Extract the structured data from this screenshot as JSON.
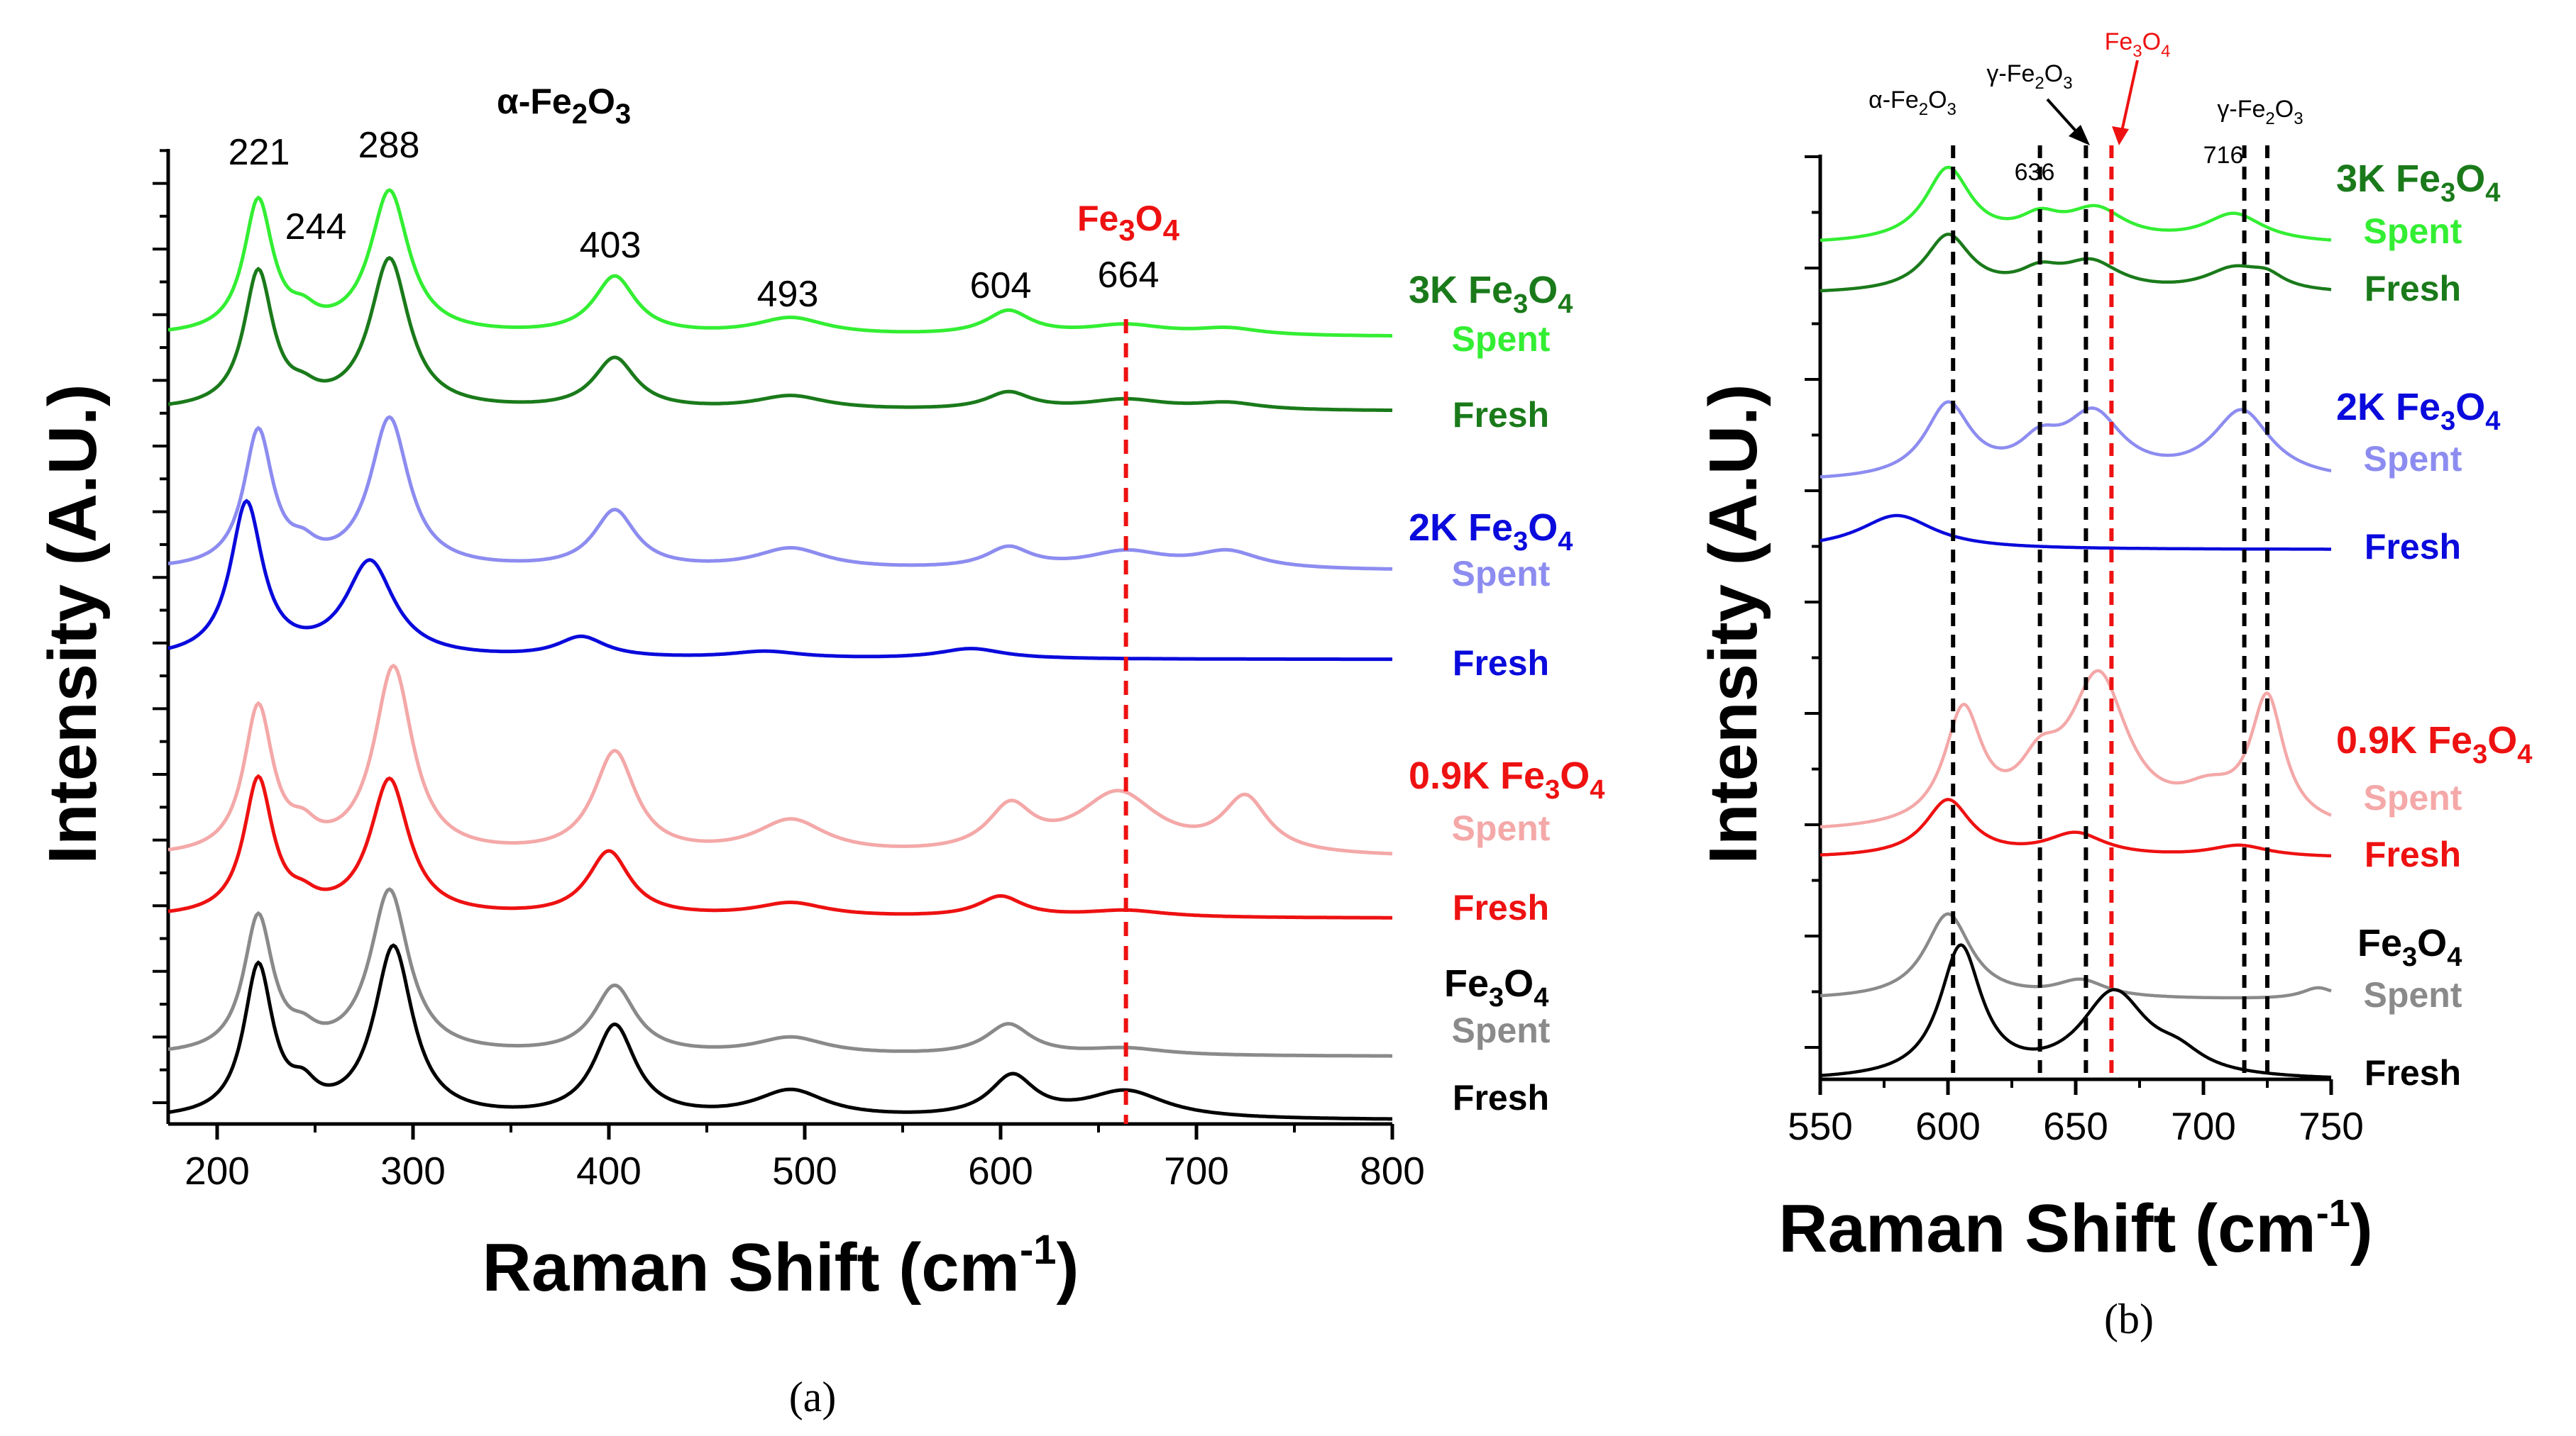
{
  "colors": {
    "k3_spent": "#33ee33",
    "k3_fresh": "#1a7a1a",
    "k2_spent": "#8c8cf0",
    "k2_fresh": "#0a0adc",
    "k09_spent": "#f4a8a8",
    "k09_fresh": "#ee1111",
    "fe_spent": "#8a8a8a",
    "fe_fresh": "#000000",
    "red": "#ee1111",
    "axis": "#000000"
  },
  "chart_data": [
    {
      "id": "a",
      "type": "line",
      "caption": "(a)",
      "xlabel": "Raman Shift (cm",
      "xlabel_sup": "-1",
      "xlabel_close": ")",
      "ylabel": "Intensity (A.U.)",
      "xlim": [
        175,
        800
      ],
      "xticks": [
        "200",
        "300",
        "400",
        "500",
        "600",
        "700",
        "800"
      ],
      "title_main": "α-Fe",
      "title_sub1": "2",
      "title_mid": "O",
      "title_sub2": "3",
      "peak_labels": [
        "221",
        "244",
        "288",
        "403",
        "493",
        "604"
      ],
      "fe3o4_main": "Fe",
      "fe3o4_sub1": "3",
      "fe3o4_mid": "O",
      "fe3o4_sub2": "4",
      "fe3o4_peak": "664",
      "marker_line_x": 664,
      "groups": [
        {
          "name": "3K Fe3O4",
          "label_main": "3K Fe",
          "spent": "Spent",
          "fresh": "Fresh"
        },
        {
          "name": "2K Fe3O4",
          "label_main": "2K Fe",
          "spent": "Spent",
          "fresh": "Fresh"
        },
        {
          "name": "0.9K Fe3O4",
          "label_main": "0.9K Fe",
          "spent": "Spent",
          "fresh": "Fresh"
        },
        {
          "name": "Fe3O4",
          "label_main": "Fe",
          "spent": "Spent",
          "fresh": "Fresh"
        }
      ],
      "series": [
        {
          "name": "3K Fe3O4 Spent",
          "color_key": "k3_spent",
          "baseline": 0.21,
          "peaks": [
            [
              221,
              0.39,
              9
            ],
            [
              244,
              0.04,
              8
            ],
            [
              288,
              0.42,
              12
            ],
            [
              403,
              0.17,
              13
            ],
            [
              493,
              0.05,
              22
            ],
            [
              604,
              0.07,
              14
            ],
            [
              664,
              0.03,
              25
            ],
            [
              716,
              0.02,
              20
            ]
          ]
        },
        {
          "name": "3K Fe3O4 Fresh",
          "color_key": "k3_fresh",
          "baseline": 0.19,
          "peaks": [
            [
              221,
              0.4,
              9
            ],
            [
              244,
              0.03,
              8
            ],
            [
              288,
              0.44,
              12
            ],
            [
              403,
              0.15,
              13
            ],
            [
              493,
              0.04,
              22
            ],
            [
              604,
              0.05,
              14
            ],
            [
              664,
              0.03,
              25
            ],
            [
              716,
              0.02,
              20
            ]
          ]
        },
        {
          "name": "2K Fe3O4 Spent",
          "color_key": "k2_spent",
          "baseline": 0.22,
          "peaks": [
            [
              221,
              0.4,
              9
            ],
            [
              244,
              0.04,
              8
            ],
            [
              288,
              0.44,
              12
            ],
            [
              403,
              0.17,
              13
            ],
            [
              493,
              0.06,
              22
            ],
            [
              604,
              0.06,
              14
            ],
            [
              664,
              0.05,
              25
            ],
            [
              716,
              0.05,
              20
            ]
          ]
        },
        {
          "name": "2K Fe3O4 Fresh",
          "color_key": "k2_fresh",
          "baseline": 0.12,
          "peaks": [
            [
              215,
              0.45,
              10
            ],
            [
              278,
              0.28,
              15
            ],
            [
              386,
              0.06,
              15
            ],
            [
              480,
              0.02,
              22
            ],
            [
              585,
              0.03,
              20
            ]
          ]
        },
        {
          "name": "0.9K Fe3O4 Spent",
          "color_key": "k09_spent",
          "baseline": 0.22,
          "peaks": [
            [
              221,
              0.43,
              9
            ],
            [
              244,
              0.05,
              8
            ],
            [
              290,
              0.55,
              12
            ],
            [
              403,
              0.3,
              13
            ],
            [
              493,
              0.1,
              22
            ],
            [
              605,
              0.13,
              14
            ],
            [
              660,
              0.18,
              25
            ],
            [
              725,
              0.16,
              14
            ]
          ]
        },
        {
          "name": "0.9K Fe3O4 Fresh",
          "color_key": "k09_fresh",
          "baseline": 0.14,
          "peaks": [
            [
              221,
              0.4,
              9
            ],
            [
              244,
              0.03,
              8
            ],
            [
              288,
              0.4,
              12
            ],
            [
              400,
              0.19,
              13
            ],
            [
              493,
              0.04,
              22
            ],
            [
              600,
              0.06,
              14
            ],
            [
              664,
              0.02,
              25
            ]
          ]
        },
        {
          "name": "Fe3O4 Spent",
          "color_key": "fe_spent",
          "baseline": 0.19,
          "peaks": [
            [
              221,
              0.4,
              9
            ],
            [
              244,
              0.04,
              8
            ],
            [
              288,
              0.48,
              12
            ],
            [
              403,
              0.2,
              13
            ],
            [
              493,
              0.05,
              22
            ],
            [
              604,
              0.09,
              14
            ],
            [
              664,
              0.02,
              25
            ]
          ]
        },
        {
          "name": "Fe3O4 Fresh",
          "color_key": "fe_fresh",
          "baseline": 0.08,
          "peaks": [
            [
              221,
              0.44,
              9
            ],
            [
              244,
              0.06,
              8
            ],
            [
              290,
              0.5,
              12
            ],
            [
              403,
              0.27,
              13
            ],
            [
              493,
              0.08,
              22
            ],
            [
              606,
              0.12,
              14
            ],
            [
              664,
              0.08,
              25
            ]
          ]
        }
      ]
    },
    {
      "id": "b",
      "type": "line",
      "caption": "(b)",
      "xlabel": "Raman Shift (cm",
      "xlabel_sup": "-1",
      "xlabel_close": ")",
      "ylabel": "Intensity (A.U.)",
      "xlim": [
        550,
        750
      ],
      "xticks": [
        "550",
        "600",
        "650",
        "700",
        "750"
      ],
      "peak_labels": [
        "636",
        "716"
      ],
      "annotations": {
        "alpha_main": "α-Fe",
        "alpha_sub1": "2",
        "alpha_mid": "O",
        "alpha_sub2": "3",
        "gamma_main": "γ-Fe",
        "gamma_sub1": "2",
        "gamma_mid": "O",
        "gamma_sub2": "3",
        "fe3o4_main": "Fe",
        "fe3o4_sub1": "3",
        "fe3o4_mid": "O",
        "fe3o4_sub2": "4"
      },
      "black_dashed_x": [
        602,
        636,
        654,
        716,
        725
      ],
      "red_dashed_x": 664,
      "groups": [
        {
          "name": "3K Fe3O4",
          "label_main": "3K Fe",
          "spent": "Spent",
          "fresh": "Fresh"
        },
        {
          "name": "2K Fe3O4",
          "label_main": "2K Fe",
          "spent": "Spent",
          "fresh": "Fresh"
        },
        {
          "name": "0.9K Fe3O4",
          "label_main": "0.9K Fe",
          "spent": "Spent",
          "fresh": "Fresh"
        },
        {
          "name": "Fe3O4",
          "label_main": "Fe",
          "spent": "Spent",
          "fresh": "Fresh"
        }
      ],
      "series": [
        {
          "name": "3K Fe3O4 Spent",
          "color_key": "k3_spent",
          "baseline": 0.06,
          "peaks": [
            [
              600,
              0.13,
              11
            ],
            [
              636,
              0.035,
              10
            ],
            [
              658,
              0.055,
              14
            ],
            [
              712,
              0.05,
              14
            ]
          ]
        },
        {
          "name": "3K Fe3O4 Fresh",
          "color_key": "k3_fresh",
          "baseline": 0.04,
          "peaks": [
            [
              600,
              0.1,
              11
            ],
            [
              636,
              0.03,
              10
            ],
            [
              656,
              0.05,
              14
            ],
            [
              712,
              0.04,
              14
            ],
            [
              725,
              0.02,
              8
            ]
          ]
        },
        {
          "name": "2K Fe3O4 Spent",
          "color_key": "k2_spent",
          "baseline": 0.05,
          "peaks": [
            [
              600,
              0.13,
              11
            ],
            [
              636,
              0.05,
              10
            ],
            [
              657,
              0.11,
              14
            ],
            [
              715,
              0.12,
              14
            ]
          ]
        },
        {
          "name": "2K Fe3O4 Fresh",
          "color_key": "k2_fresh",
          "baseline": 0.035,
          "peaks": [
            [
              580,
              0.06,
              18
            ]
          ]
        },
        {
          "name": "0.9K Fe3O4 Spent",
          "color_key": "k09_spent",
          "baseline": 0.04,
          "peaks": [
            [
              606,
              0.2,
              9
            ],
            [
              636,
              0.08,
              10
            ],
            [
              659,
              0.26,
              14
            ],
            [
              702,
              0.05,
              14
            ],
            [
              725,
              0.22,
              8
            ]
          ]
        },
        {
          "name": "0.9K Fe3O4 Fresh",
          "color_key": "k09_fresh",
          "baseline": 0.04,
          "peaks": [
            [
              600,
              0.1,
              11
            ],
            [
              650,
              0.04,
              14
            ],
            [
              714,
              0.02,
              14
            ]
          ]
        },
        {
          "name": "Fe3O4 Spent",
          "color_key": "fe_spent",
          "baseline": 0.05,
          "peaks": [
            [
              600,
              0.15,
              11
            ],
            [
              652,
              0.03,
              12
            ],
            [
              745,
              0.02,
              8
            ]
          ]
        },
        {
          "name": "Fe3O4 Fresh",
          "color_key": "fe_fresh",
          "baseline": 0.01,
          "peaks": [
            [
              605,
              0.23,
              10
            ],
            [
              665,
              0.15,
              16
            ],
            [
              690,
              0.03,
              12
            ]
          ]
        }
      ]
    }
  ]
}
